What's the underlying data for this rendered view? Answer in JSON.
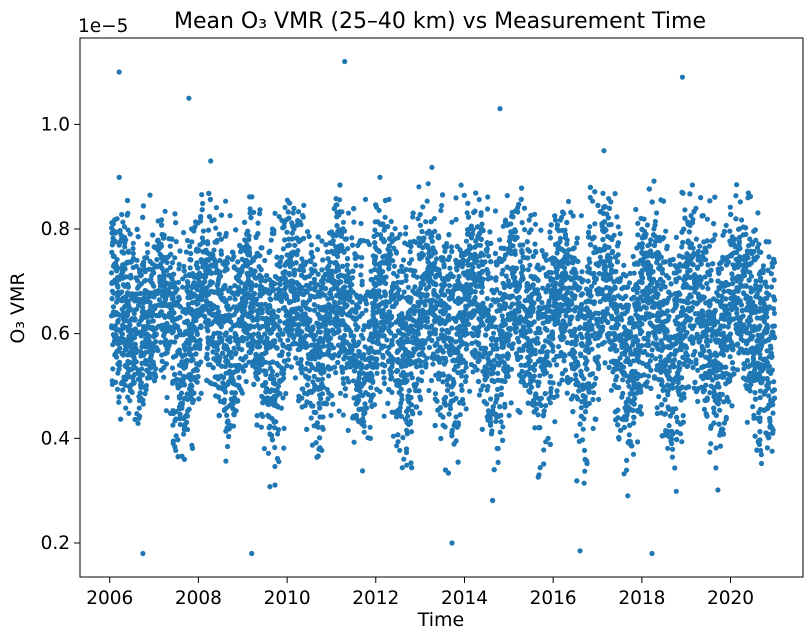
{
  "chart_data": {
    "type": "scatter",
    "title": "Mean O₃ VMR (25–40 km) vs Measurement Time",
    "xlabel": "Time",
    "ylabel": "O₃ VMR",
    "offset_text": "1e−5",
    "x_type": "date",
    "xlim": [
      "2005-05-01",
      "2021-08-20"
    ],
    "ylim": [
      0.135,
      1.165
    ],
    "y_unit_multiplier": "1e-5",
    "x_ticks": [
      {
        "value": "2006-01-01",
        "label": "2006"
      },
      {
        "value": "2008-01-01",
        "label": "2008"
      },
      {
        "value": "2010-01-01",
        "label": "2010"
      },
      {
        "value": "2012-01-01",
        "label": "2012"
      },
      {
        "value": "2014-01-01",
        "label": "2014"
      },
      {
        "value": "2016-01-01",
        "label": "2016"
      },
      {
        "value": "2018-01-01",
        "label": "2018"
      },
      {
        "value": "2020-01-01",
        "label": "2020"
      }
    ],
    "y_ticks": [
      {
        "value": 0.2,
        "label": "0.2"
      },
      {
        "value": 0.4,
        "label": "0.4"
      },
      {
        "value": 0.6,
        "label": "0.6"
      },
      {
        "value": 0.8,
        "label": "0.8"
      },
      {
        "value": 1.0,
        "label": "1.0"
      }
    ],
    "grid": false,
    "color": "#1f77b4",
    "data_range": {
      "x": [
        "2006-01-15",
        "2020-12-31"
      ],
      "y_dense_band": [
        0.23,
        0.96
      ]
    },
    "seasonal_envelope": [
      {
        "x": "2006-02",
        "low": 0.42,
        "high": 0.94
      },
      {
        "x": "2006-09",
        "low": 0.3,
        "high": 0.88
      },
      {
        "x": "2007-02",
        "low": 0.45,
        "high": 0.9
      },
      {
        "x": "2007-09",
        "low": 0.22,
        "high": 0.86
      },
      {
        "x": "2008-02",
        "low": 0.45,
        "high": 0.96
      },
      {
        "x": "2008-09",
        "low": 0.24,
        "high": 0.88
      },
      {
        "x": "2009-02",
        "low": 0.45,
        "high": 0.92
      },
      {
        "x": "2009-09",
        "low": 0.2,
        "high": 0.9
      },
      {
        "x": "2010-02",
        "low": 0.45,
        "high": 0.92
      },
      {
        "x": "2010-09",
        "low": 0.25,
        "high": 0.89
      },
      {
        "x": "2011-02",
        "low": 0.45,
        "high": 0.92
      },
      {
        "x": "2011-09",
        "low": 0.26,
        "high": 0.88
      },
      {
        "x": "2012-02",
        "low": 0.44,
        "high": 0.93
      },
      {
        "x": "2012-09",
        "low": 0.24,
        "high": 0.88
      },
      {
        "x": "2013-02",
        "low": 0.45,
        "high": 0.94
      },
      {
        "x": "2013-09",
        "low": 0.23,
        "high": 0.89
      },
      {
        "x": "2014-02",
        "low": 0.46,
        "high": 0.95
      },
      {
        "x": "2014-09",
        "low": 0.23,
        "high": 0.89
      },
      {
        "x": "2015-02",
        "low": 0.45,
        "high": 0.95
      },
      {
        "x": "2015-09",
        "low": 0.24,
        "high": 0.88
      },
      {
        "x": "2016-02",
        "low": 0.44,
        "high": 0.96
      },
      {
        "x": "2016-09",
        "low": 0.24,
        "high": 0.89
      },
      {
        "x": "2017-02",
        "low": 0.45,
        "high": 0.98
      },
      {
        "x": "2017-09",
        "low": 0.22,
        "high": 0.89
      },
      {
        "x": "2018-02",
        "low": 0.44,
        "high": 0.95
      },
      {
        "x": "2018-09",
        "low": 0.22,
        "high": 0.89
      },
      {
        "x": "2019-02",
        "low": 0.45,
        "high": 0.96
      },
      {
        "x": "2019-09",
        "low": 0.22,
        "high": 0.89
      },
      {
        "x": "2020-02",
        "low": 0.44,
        "high": 0.97
      },
      {
        "x": "2020-09",
        "low": 0.25,
        "high": 0.88
      }
    ],
    "outliers": [
      {
        "x": "2006-03-20",
        "y": 1.1
      },
      {
        "x": "2007-10-15",
        "y": 1.05
      },
      {
        "x": "2011-04-20",
        "y": 1.12
      },
      {
        "x": "2014-10-20",
        "y": 1.03
      },
      {
        "x": "2018-12-01",
        "y": 1.09
      },
      {
        "x": "2006-10-01",
        "y": 0.18
      },
      {
        "x": "2009-03-15",
        "y": 0.18
      },
      {
        "x": "2013-09-20",
        "y": 0.2
      },
      {
        "x": "2016-08-10",
        "y": 0.185
      },
      {
        "x": "2018-03-25",
        "y": 0.18
      }
    ]
  }
}
